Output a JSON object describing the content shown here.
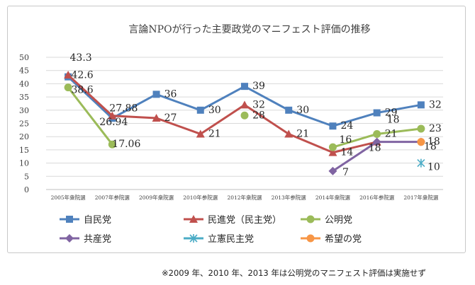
{
  "chart_data": {
    "type": "line",
    "title": "言論NPOが行った主要政党のマニフェスト評価の推移",
    "categories": [
      "2005年衆院選",
      "2007年参院選",
      "2009年衆院選",
      "2010年参院選",
      "2012年衆院選",
      "2013年参院選",
      "2014年衆院選",
      "2016年参院選",
      "2017年衆院選"
    ],
    "ylim": [
      0,
      50
    ],
    "yticks": [
      0,
      5,
      10,
      15,
      20,
      25,
      30,
      35,
      40,
      45,
      50
    ],
    "grid": true,
    "legend_position": "bottom",
    "series": [
      {
        "name": "自民党",
        "color": "#4f81bd",
        "marker": "square",
        "values": [
          42.6,
          26.94,
          36,
          30,
          39,
          30,
          24,
          29,
          32
        ],
        "labels": [
          "42.6",
          "26.94",
          "36",
          "30",
          "39",
          "30",
          "24",
          "29",
          "32"
        ]
      },
      {
        "name": "民進党（民主党）",
        "color": "#c0504d",
        "marker": "triangle",
        "values": [
          43.3,
          27.88,
          27,
          21,
          32,
          21,
          14,
          18,
          null
        ],
        "labels": [
          "43.3",
          "27.88",
          "27",
          "21",
          "32",
          "21",
          "14",
          "18",
          null
        ]
      },
      {
        "name": "公明党",
        "color": "#9bbb59",
        "marker": "circle",
        "values": [
          38.6,
          17.06,
          null,
          null,
          28,
          null,
          16,
          21,
          23
        ],
        "labels": [
          "38.6",
          "17.06",
          null,
          null,
          "28",
          null,
          "16",
          "21",
          "23"
        ]
      },
      {
        "name": "共産党",
        "color": "#8064a2",
        "marker": "diamond",
        "values": [
          null,
          null,
          null,
          null,
          null,
          null,
          7,
          18,
          18
        ],
        "labels": [
          null,
          null,
          null,
          null,
          null,
          null,
          "7",
          "18",
          "18"
        ]
      },
      {
        "name": "立憲民主党",
        "color": "#4bacc6",
        "marker": "asterisk",
        "values": [
          null,
          null,
          null,
          null,
          null,
          null,
          null,
          null,
          10
        ],
        "labels": [
          null,
          null,
          null,
          null,
          null,
          null,
          null,
          null,
          "10"
        ]
      },
      {
        "name": "希望の党",
        "color": "#f79646",
        "marker": "circle",
        "values": [
          null,
          null,
          null,
          null,
          null,
          null,
          null,
          null,
          18
        ],
        "labels": [
          null,
          null,
          null,
          null,
          null,
          null,
          null,
          null,
          "18"
        ]
      }
    ]
  },
  "footnote": "※2009 年、2010 年、2013 年は公明党のマニフェスト評価は実施せず"
}
